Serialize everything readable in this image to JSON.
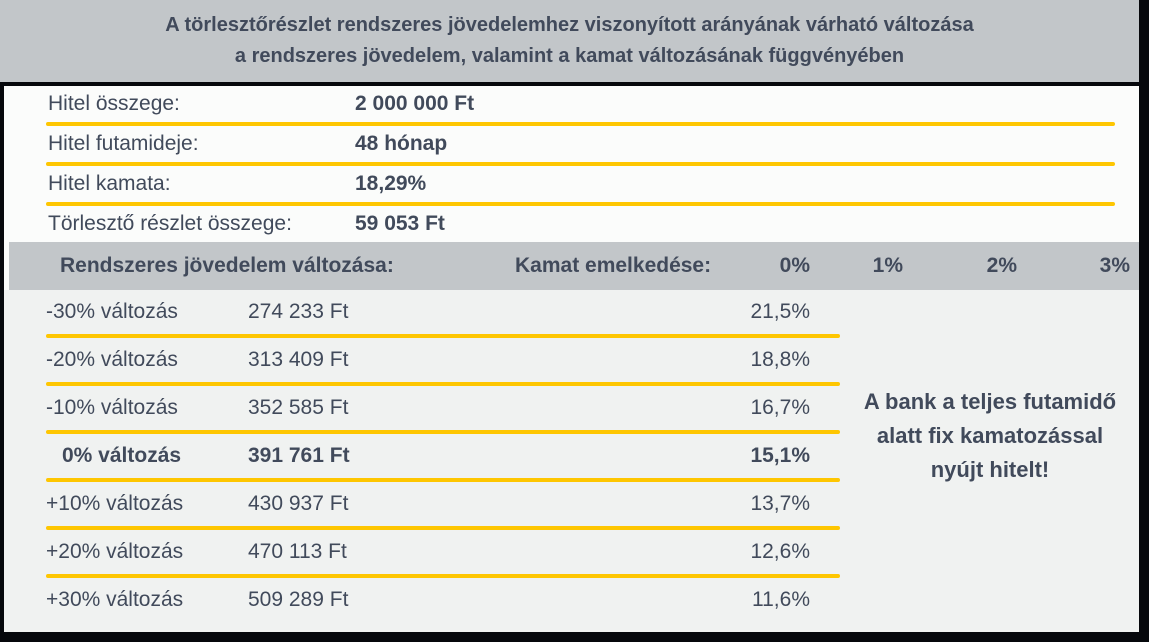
{
  "title": {
    "line1": "A törlesztőrészlet rendszeres jövedelemhez viszonyított arányának várható változása",
    "line2": "a rendszeres jövedelem, valamint a kamat változásának függvényében"
  },
  "loan_details": {
    "rows": [
      {
        "label": "Hitel összege:",
        "value": "2 000 000 Ft"
      },
      {
        "label": "Hitel futamideje:",
        "value": "48 hónap"
      },
      {
        "label": "Hitel kamata:",
        "value": "18,29%"
      },
      {
        "label": "Törlesztő részlet összege:",
        "value": "59 053 Ft"
      }
    ]
  },
  "matrix_header": {
    "income_label": "Rendszeres jövedelem változása:",
    "rate_label": "Kamat emelkedése:",
    "rate_columns": [
      "0%",
      "1%",
      "2%",
      "3%"
    ]
  },
  "matrix_rows": [
    {
      "change": "-30% változás",
      "income": "274 233 Ft",
      "ratio": "21,5%"
    },
    {
      "change": "-20% változás",
      "income": "313 409 Ft",
      "ratio": "18,8%"
    },
    {
      "change": "-10% változás",
      "income": "352 585 Ft",
      "ratio": "16,7%"
    },
    {
      "change": "0% változás",
      "income": "391 761 Ft",
      "ratio": "15,1%"
    },
    {
      "change": "+10% változás",
      "income": "430 937 Ft",
      "ratio": "13,7%"
    },
    {
      "change": "+20% változás",
      "income": "470 113 Ft",
      "ratio": "12,6%"
    },
    {
      "change": "+30% változás",
      "income": "509 289 Ft",
      "ratio": "11,6%"
    }
  ],
  "note": "A bank a teljes futamidő alatt fix kamatozással nyújt hitelt!",
  "colors": {
    "band_gray": "#c2c6c9",
    "text_navy": "#414a5b",
    "divider_yellow": "#fec601",
    "frame_black": "#06080c",
    "table_bg": "#f0f2f1"
  }
}
